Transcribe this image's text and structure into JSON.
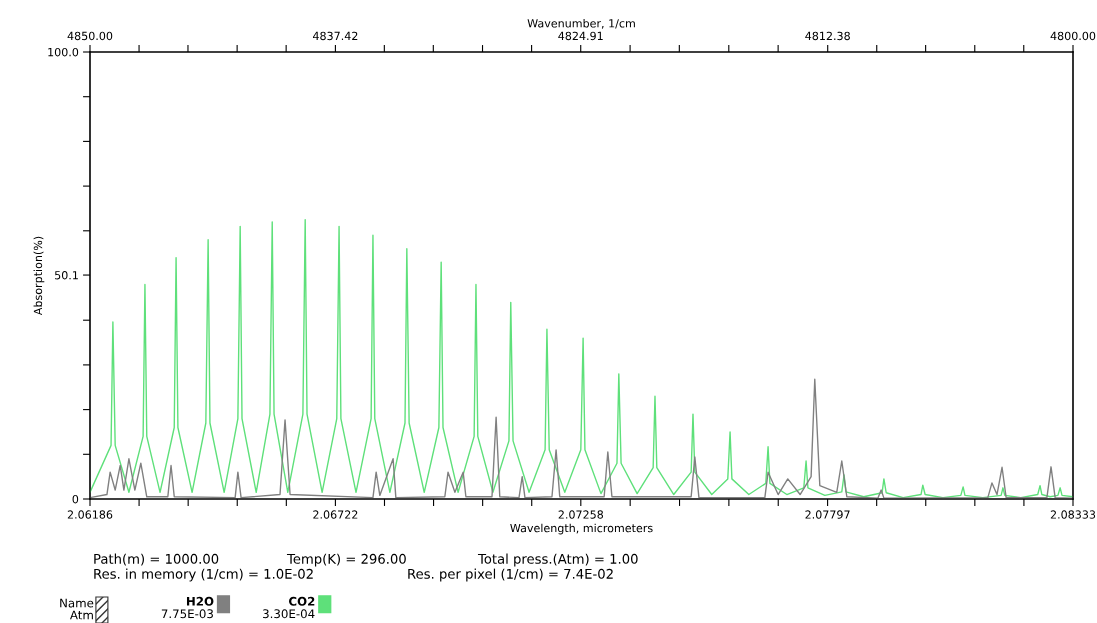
{
  "chart_data": {
    "type": "line",
    "xlabel": "Wavelength, micrometers",
    "ylabel": "Absorption(%)",
    "x2label": "Wavenumber, 1/cm",
    "xlim": [
      2.06186,
      2.08333
    ],
    "xticks": [
      2.06186,
      {
        "value": 2.062932,
        "label": null
      },
      {
        "value": 2.064004,
        "label": null
      },
      {
        "value": 2.065076,
        "label": null
      },
      {
        "value": 2.066148,
        "label": null
      },
      2.06722,
      {
        "value": 2.068292,
        "label": null
      },
      {
        "value": 2.069364,
        "label": null
      },
      {
        "value": 2.070436,
        "label": null
      },
      {
        "value": 2.071508,
        "label": null
      },
      2.07258,
      {
        "value": 2.073658,
        "label": null
      },
      {
        "value": 2.074736,
        "label": null
      },
      {
        "value": 2.075814,
        "label": null
      },
      {
        "value": 2.076892,
        "label": null
      },
      2.07797,
      {
        "value": 2.079042,
        "label": null
      },
      {
        "value": 2.080114,
        "label": null
      },
      {
        "value": 2.081186,
        "label": null
      },
      {
        "value": 2.082258,
        "label": null
      },
      2.08333
    ],
    "x2lim": [
      4850,
      4800
    ],
    "x2ticks": [
      {
        "value": 4850,
        "label": "4850.00"
      },
      {
        "value": 4847.48,
        "label": null
      },
      {
        "value": 4844.97,
        "label": null
      },
      {
        "value": 4842.45,
        "label": null
      },
      {
        "value": 4839.94,
        "label": null
      },
      4837.42,
      {
        "value": 4834.92,
        "label": null
      },
      {
        "value": 4832.42,
        "label": null
      },
      {
        "value": 4829.91,
        "label": null
      },
      {
        "value": 4827.41,
        "label": null
      },
      4824.91,
      {
        "value": 4822.4,
        "label": null
      },
      {
        "value": 4819.9,
        "label": null
      },
      {
        "value": 4817.39,
        "label": null
      },
      {
        "value": 4814.89,
        "label": null
      },
      4812.38,
      {
        "value": 4809.9,
        "label": null
      },
      {
        "value": 4807.43,
        "label": null
      },
      {
        "value": 4804.95,
        "label": null
      },
      {
        "value": 4802.48,
        "label": null
      },
      {
        "value": 4800,
        "label": "4800.00"
      }
    ],
    "ylim": [
      0,
      100
    ],
    "yticks": [
      0,
      {
        "value": 10,
        "label": null
      },
      {
        "value": 20,
        "label": null
      },
      {
        "value": 30,
        "label": null
      },
      {
        "value": 40,
        "label": null
      },
      50.1,
      {
        "value": 60,
        "label": null
      },
      {
        "value": 70,
        "label": null
      },
      {
        "value": 80,
        "label": null
      },
      {
        "value": 90,
        "label": null
      },
      {
        "value": 100,
        "label": "100.0"
      }
    ],
    "grid": false,
    "legend": "bottom left",
    "marker": "none",
    "line_style": "solid",
    "series": [
      {
        "name": "H2O",
        "color": "#808080",
        "x": [
          2.06186,
          2.06223,
          2.0623,
          2.06241,
          2.06252,
          2.0626,
          2.06271,
          2.06284,
          2.06297,
          2.0631,
          2.06356,
          2.06363,
          2.0637,
          2.06503,
          2.06509,
          2.06516,
          2.06601,
          2.06612,
          2.06623,
          2.06804,
          2.06811,
          2.06819,
          2.06848,
          2.06854,
          2.06961,
          2.06968,
          2.06983,
          2.07001,
          2.07007,
          2.07064,
          2.07073,
          2.07081,
          2.07123,
          2.0713,
          2.07136,
          2.07195,
          2.07204,
          2.07212,
          2.07309,
          2.07317,
          2.07326,
          2.07499,
          2.07507,
          2.07516,
          2.0766,
          2.07667,
          2.07689,
          2.0771,
          2.07737,
          2.07761,
          2.07769,
          2.0778,
          2.07817,
          2.07828,
          2.07839,
          2.07907,
          2.07914,
          2.0792,
          2.08147,
          2.08156,
          2.08167,
          2.08178,
          2.08187,
          2.08276,
          2.08285,
          2.08294,
          2.08333
        ],
        "values": [
          0.3,
          1,
          6,
          2,
          7.5,
          2,
          9,
          2,
          8,
          0.5,
          0.5,
          7.5,
          0.5,
          0.3,
          6,
          0.3,
          1,
          17.7,
          1,
          0.3,
          6,
          0.8,
          9,
          0.3,
          0.5,
          6,
          1.5,
          6,
          0.5,
          0.5,
          18.3,
          0.5,
          0.3,
          5,
          0.3,
          0.5,
          11,
          0.5,
          0.5,
          10.5,
          0.5,
          0.5,
          9.4,
          0.3,
          0.3,
          6,
          1,
          4.5,
          1,
          5,
          26.8,
          3,
          1.5,
          8.5,
          0.5,
          0.2,
          2,
          0.2,
          0.3,
          3.6,
          1,
          7.1,
          0.3,
          0.3,
          7.2,
          0.3,
          0.2
        ]
      },
      {
        "name": "CO2",
        "color": "#5ee07a",
        "x": [
          2.06186,
          2.06232,
          2.06236,
          2.06241,
          2.06271,
          2.06302,
          2.06306,
          2.0631,
          2.06339,
          2.0637,
          2.06374,
          2.06378,
          2.06409,
          2.06439,
          2.06444,
          2.06448,
          2.06479,
          2.06509,
          2.06514,
          2.06518,
          2.06549,
          2.06579,
          2.06584,
          2.06588,
          2.06618,
          2.06651,
          2.06656,
          2.0666,
          2.06693,
          2.06725,
          2.0673,
          2.06734,
          2.06767,
          2.068,
          2.06804,
          2.06808,
          2.06841,
          2.06874,
          2.06878,
          2.06883,
          2.06916,
          2.06948,
          2.06953,
          2.06957,
          2.0699,
          2.07025,
          2.07029,
          2.07033,
          2.07066,
          2.07101,
          2.07105,
          2.0711,
          2.07145,
          2.0718,
          2.07184,
          2.07189,
          2.07223,
          2.07258,
          2.07263,
          2.07267,
          2.07302,
          2.07337,
          2.07341,
          2.07346,
          2.07381,
          2.07416,
          2.0742,
          2.07424,
          2.07461,
          2.07499,
          2.07503,
          2.07507,
          2.07544,
          2.07579,
          2.07584,
          2.07588,
          2.07625,
          2.07662,
          2.07667,
          2.07671,
          2.07708,
          2.07745,
          2.0775,
          2.07754,
          2.07791,
          2.07828,
          2.07833,
          2.07837,
          2.07876,
          2.07916,
          2.0792,
          2.07925,
          2.07962,
          2.08001,
          2.08005,
          2.0801,
          2.08049,
          2.08088,
          2.08093,
          2.08097,
          2.08136,
          2.08176,
          2.0818,
          2.08184,
          2.08219,
          2.08256,
          2.08261,
          2.08265,
          2.08283,
          2.083,
          2.08305,
          2.08309,
          2.08333
        ],
        "values": [
          1.5,
          12,
          39.6,
          12,
          1.5,
          14,
          48,
          14,
          1.5,
          16,
          54,
          16,
          1.5,
          17,
          58,
          17,
          1.5,
          18,
          61,
          18,
          1.5,
          19,
          62,
          19,
          1.5,
          19,
          62.5,
          19,
          1.5,
          18,
          61,
          18,
          1.5,
          18,
          59,
          18,
          1.5,
          17,
          56,
          17,
          1.5,
          16,
          53,
          16,
          1.5,
          14,
          48,
          14,
          1.5,
          13,
          44,
          13,
          1.5,
          11,
          38,
          11,
          1.5,
          11,
          36,
          11,
          1.2,
          8,
          28,
          8,
          1.2,
          7,
          23,
          7,
          1,
          6,
          19,
          6,
          1,
          4.5,
          15,
          4.5,
          1,
          3.5,
          11.7,
          3.5,
          1,
          2.5,
          8.5,
          2.5,
          0.8,
          1.6,
          5.4,
          1.6,
          0.5,
          1.4,
          4.5,
          1.4,
          0.3,
          1,
          3.1,
          1,
          0.3,
          0.8,
          2.7,
          0.8,
          0.3,
          0.8,
          2.5,
          0.8,
          0.3,
          1,
          3,
          1,
          0.5,
          0.8,
          2.5,
          0.8,
          0.5
        ]
      }
    ],
    "annotations": [
      "Path(m) = 1000.00",
      "Temp(K) = 296.00",
      "Total press.(Atm) = 1.00",
      "Res. in memory (1/cm) = 1.0E-02",
      "Res. per pixel (1/cm) = 7.4E-02",
      "Name",
      "Atm",
      "7.75E-03",
      "3.30E-04"
    ]
  }
}
